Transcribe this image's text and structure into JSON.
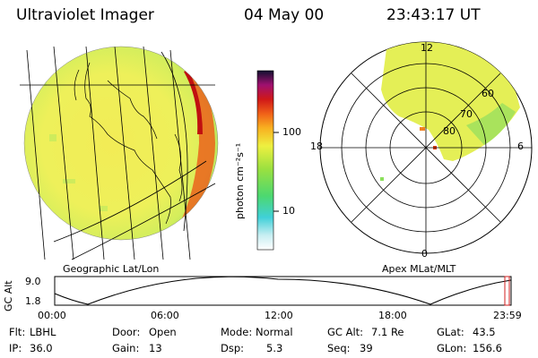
{
  "header": {
    "instrument": "Ultraviolet Imager",
    "date": "04 May 00",
    "time": "23:43:17 UT"
  },
  "colorbar": {
    "unit_label": "photon cm⁻²s⁻¹",
    "ticks": [
      {
        "label": "100",
        "value": 100
      },
      {
        "label": "10",
        "value": 10
      }
    ]
  },
  "left_panel": {
    "caption": "Geographic Lat/Lon"
  },
  "right_panel": {
    "caption": "Apex MLat/MLT",
    "mlt_labels": [
      {
        "label": "12",
        "pos": "top"
      },
      {
        "label": "18",
        "pos": "left"
      },
      {
        "label": "6",
        "pos": "right"
      },
      {
        "label": "0",
        "pos": "bottom"
      }
    ],
    "lat_labels": [
      "60",
      "70",
      "80"
    ]
  },
  "altitude_plot": {
    "ylabel": "GC Alt",
    "yticks": [
      "9.0",
      "1.8"
    ],
    "xticks": [
      "00:00",
      "06:00",
      "12:00",
      "18:00",
      "23:59"
    ]
  },
  "info": {
    "row1": [
      {
        "label": "Flt:",
        "value": "LBHL"
      },
      {
        "label": "Door:",
        "value": "Open"
      },
      {
        "label": "Mode:",
        "value": "Normal"
      },
      {
        "label": "GC Alt:",
        "value": "7.1 Re"
      },
      {
        "label": "GLat:",
        "value": "43.5"
      }
    ],
    "row2": [
      {
        "label": "IP:",
        "value": "36.0"
      },
      {
        "label": "Gain:",
        "value": "13"
      },
      {
        "label": "Dsp:",
        "value": "5.3"
      },
      {
        "label": "Seq:",
        "value": "39"
      },
      {
        "label": "GLon:",
        "value": "156.6"
      }
    ]
  }
}
